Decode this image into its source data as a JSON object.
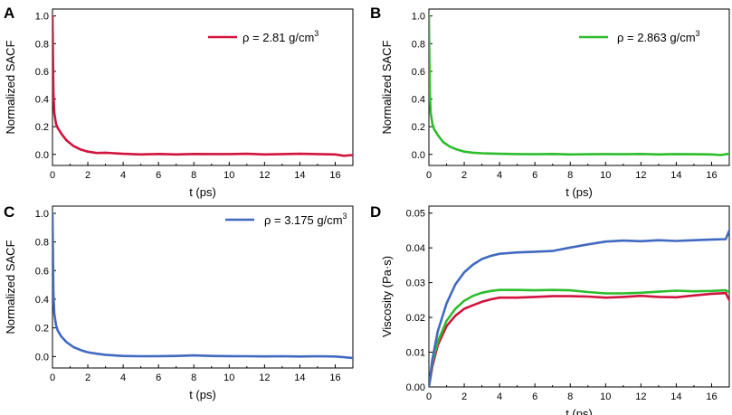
{
  "colors": {
    "red": "#d1133e",
    "green": "#2cbd2c",
    "blue": "#4169c1"
  },
  "chart_data": [
    {
      "panel": "A",
      "type": "line",
      "xlabel": "t (ps)",
      "ylabel": "Normalized SACF",
      "xlim": [
        0,
        17
      ],
      "ylim": [
        -0.08,
        1.05
      ],
      "xticks": [
        0,
        2,
        4,
        6,
        8,
        10,
        12,
        14,
        16
      ],
      "yticks": [
        0.0,
        0.2,
        0.4,
        0.6,
        0.8,
        1.0
      ],
      "ytick_labels": [
        "0.0",
        "0.2",
        "0.4",
        "0.6",
        "0.8",
        "1.0"
      ],
      "legend_position": "top-right",
      "series": [
        {
          "name": "ρ = 2.81 g/cm3",
          "name_main": "ρ = 2.81 g/cm",
          "name_sup": "3",
          "color": "#d1133e",
          "x": [
            0,
            0.05,
            0.1,
            0.2,
            0.3,
            0.5,
            0.8,
            1.2,
            1.6,
            2,
            2.5,
            3,
            3.5,
            4,
            5,
            6,
            7,
            8,
            9,
            10,
            11,
            12,
            13,
            14,
            15,
            16,
            16.5,
            17
          ],
          "y": [
            1.0,
            0.45,
            0.3,
            0.22,
            0.19,
            0.15,
            0.1,
            0.06,
            0.035,
            0.02,
            0.01,
            0.012,
            0.008,
            0.004,
            0.0,
            0.003,
            0.0,
            0.003,
            0.002,
            0.002,
            0.004,
            0.0,
            0.002,
            0.004,
            0.002,
            0.0,
            -0.01,
            -0.005
          ]
        }
      ]
    },
    {
      "panel": "B",
      "type": "line",
      "xlabel": "t (ps)",
      "ylabel": "Normalized SACF",
      "xlim": [
        0,
        17
      ],
      "ylim": [
        -0.08,
        1.05
      ],
      "xticks": [
        0,
        2,
        4,
        6,
        8,
        10,
        12,
        14,
        16
      ],
      "yticks": [
        0.0,
        0.2,
        0.4,
        0.6,
        0.8,
        1.0
      ],
      "ytick_labels": [
        "0.0",
        "0.2",
        "0.4",
        "0.6",
        "0.8",
        "1.0"
      ],
      "legend_position": "top-right",
      "series": [
        {
          "name": "ρ = 2.863 g/cm3",
          "name_main": "ρ = 2.863 g/cm",
          "name_sup": "3",
          "color": "#2cbd2c",
          "x": [
            0,
            0.05,
            0.1,
            0.2,
            0.3,
            0.5,
            0.8,
            1.2,
            1.6,
            2,
            2.5,
            3,
            3.5,
            4,
            5,
            6,
            7,
            8,
            9,
            10,
            11,
            12,
            13,
            14,
            15,
            16,
            16.5,
            17
          ],
          "y": [
            1.0,
            0.45,
            0.3,
            0.22,
            0.18,
            0.14,
            0.09,
            0.055,
            0.035,
            0.02,
            0.012,
            0.008,
            0.006,
            0.004,
            0.002,
            0.001,
            0.003,
            0.0,
            0.001,
            0.002,
            0.001,
            0.003,
            0.0,
            0.002,
            0.001,
            0.0,
            -0.005,
            0.005
          ]
        }
      ]
    },
    {
      "panel": "C",
      "type": "line",
      "xlabel": "t (ps)",
      "ylabel": "Normalized SACF",
      "xlim": [
        0,
        17
      ],
      "ylim": [
        -0.08,
        1.05
      ],
      "xticks": [
        0,
        2,
        4,
        6,
        8,
        10,
        12,
        14,
        16
      ],
      "yticks": [
        0.0,
        0.2,
        0.4,
        0.6,
        0.8,
        1.0
      ],
      "ytick_labels": [
        "0.0",
        "0.2",
        "0.4",
        "0.6",
        "0.8",
        "1.0"
      ],
      "legend_position": "top-right",
      "series": [
        {
          "name": "ρ = 3.175 g/cm3",
          "name_main": "ρ = 3.175 g/cm",
          "name_sup": "3",
          "color": "#4169c1",
          "x": [
            0,
            0.05,
            0.1,
            0.2,
            0.3,
            0.5,
            0.8,
            1.2,
            1.6,
            2,
            2.5,
            3,
            3.5,
            4,
            5,
            6,
            7,
            8,
            9,
            10,
            11,
            12,
            13,
            14,
            15,
            16,
            16.5,
            17
          ],
          "y": [
            1.0,
            0.45,
            0.3,
            0.22,
            0.18,
            0.14,
            0.1,
            0.065,
            0.045,
            0.03,
            0.02,
            0.012,
            0.008,
            0.004,
            0.002,
            0.003,
            0.004,
            0.008,
            0.004,
            0.003,
            0.002,
            0.001,
            0.002,
            0.0,
            0.002,
            0.0,
            -0.005,
            -0.01
          ]
        }
      ]
    },
    {
      "panel": "D",
      "type": "line",
      "xlabel": "t (ps)",
      "ylabel": "Viscosity (Pa·s)",
      "xlim": [
        0,
        17
      ],
      "ylim": [
        0,
        0.052
      ],
      "xticks": [
        0,
        2,
        4,
        6,
        8,
        10,
        12,
        14,
        16
      ],
      "yticks": [
        0.0,
        0.01,
        0.02,
        0.03,
        0.04,
        0.05
      ],
      "ytick_labels": [
        "0.00",
        "0.01",
        "0.02",
        "0.03",
        "0.04",
        "0.05"
      ],
      "series": [
        {
          "name": "ρ = 2.81 g/cm3",
          "color": "#d1133e",
          "x": [
            0,
            0.2,
            0.5,
            1,
            1.5,
            2,
            2.5,
            3,
            3.5,
            4,
            5,
            6,
            7,
            8,
            9,
            10,
            11,
            12,
            13,
            14,
            15,
            16,
            16.8,
            17
          ],
          "y": [
            0,
            0.006,
            0.012,
            0.0175,
            0.0205,
            0.0225,
            0.0235,
            0.0245,
            0.0252,
            0.0257,
            0.0257,
            0.0259,
            0.0261,
            0.0261,
            0.026,
            0.0257,
            0.0259,
            0.0262,
            0.0259,
            0.0258,
            0.0263,
            0.0268,
            0.027,
            0.025
          ]
        },
        {
          "name": "ρ = 2.863 g/cm3",
          "color": "#2cbd2c",
          "x": [
            0,
            0.2,
            0.5,
            1,
            1.5,
            2,
            2.5,
            3,
            3.5,
            4,
            5,
            6,
            7,
            8,
            9,
            10,
            11,
            12,
            13,
            14,
            15,
            16,
            16.8,
            17
          ],
          "y": [
            0,
            0.007,
            0.013,
            0.019,
            0.0225,
            0.0248,
            0.0262,
            0.0271,
            0.0276,
            0.0279,
            0.0279,
            0.0278,
            0.0279,
            0.0278,
            0.0273,
            0.0269,
            0.0269,
            0.0271,
            0.0274,
            0.0277,
            0.0275,
            0.0276,
            0.0278,
            0.0272
          ]
        },
        {
          "name": "ρ = 3.175 g/cm3",
          "color": "#4169c1",
          "x": [
            0,
            0.2,
            0.5,
            1,
            1.5,
            2,
            2.5,
            3,
            3.5,
            4,
            5,
            6,
            7,
            8,
            9,
            10,
            11,
            12,
            13,
            14,
            15,
            16,
            16.8,
            17
          ],
          "y": [
            0,
            0.008,
            0.016,
            0.024,
            0.0295,
            0.033,
            0.0352,
            0.0368,
            0.0377,
            0.0383,
            0.0387,
            0.0389,
            0.0391,
            0.0401,
            0.041,
            0.0418,
            0.0421,
            0.0419,
            0.0422,
            0.042,
            0.0422,
            0.0424,
            0.0425,
            0.045
          ]
        }
      ]
    }
  ]
}
